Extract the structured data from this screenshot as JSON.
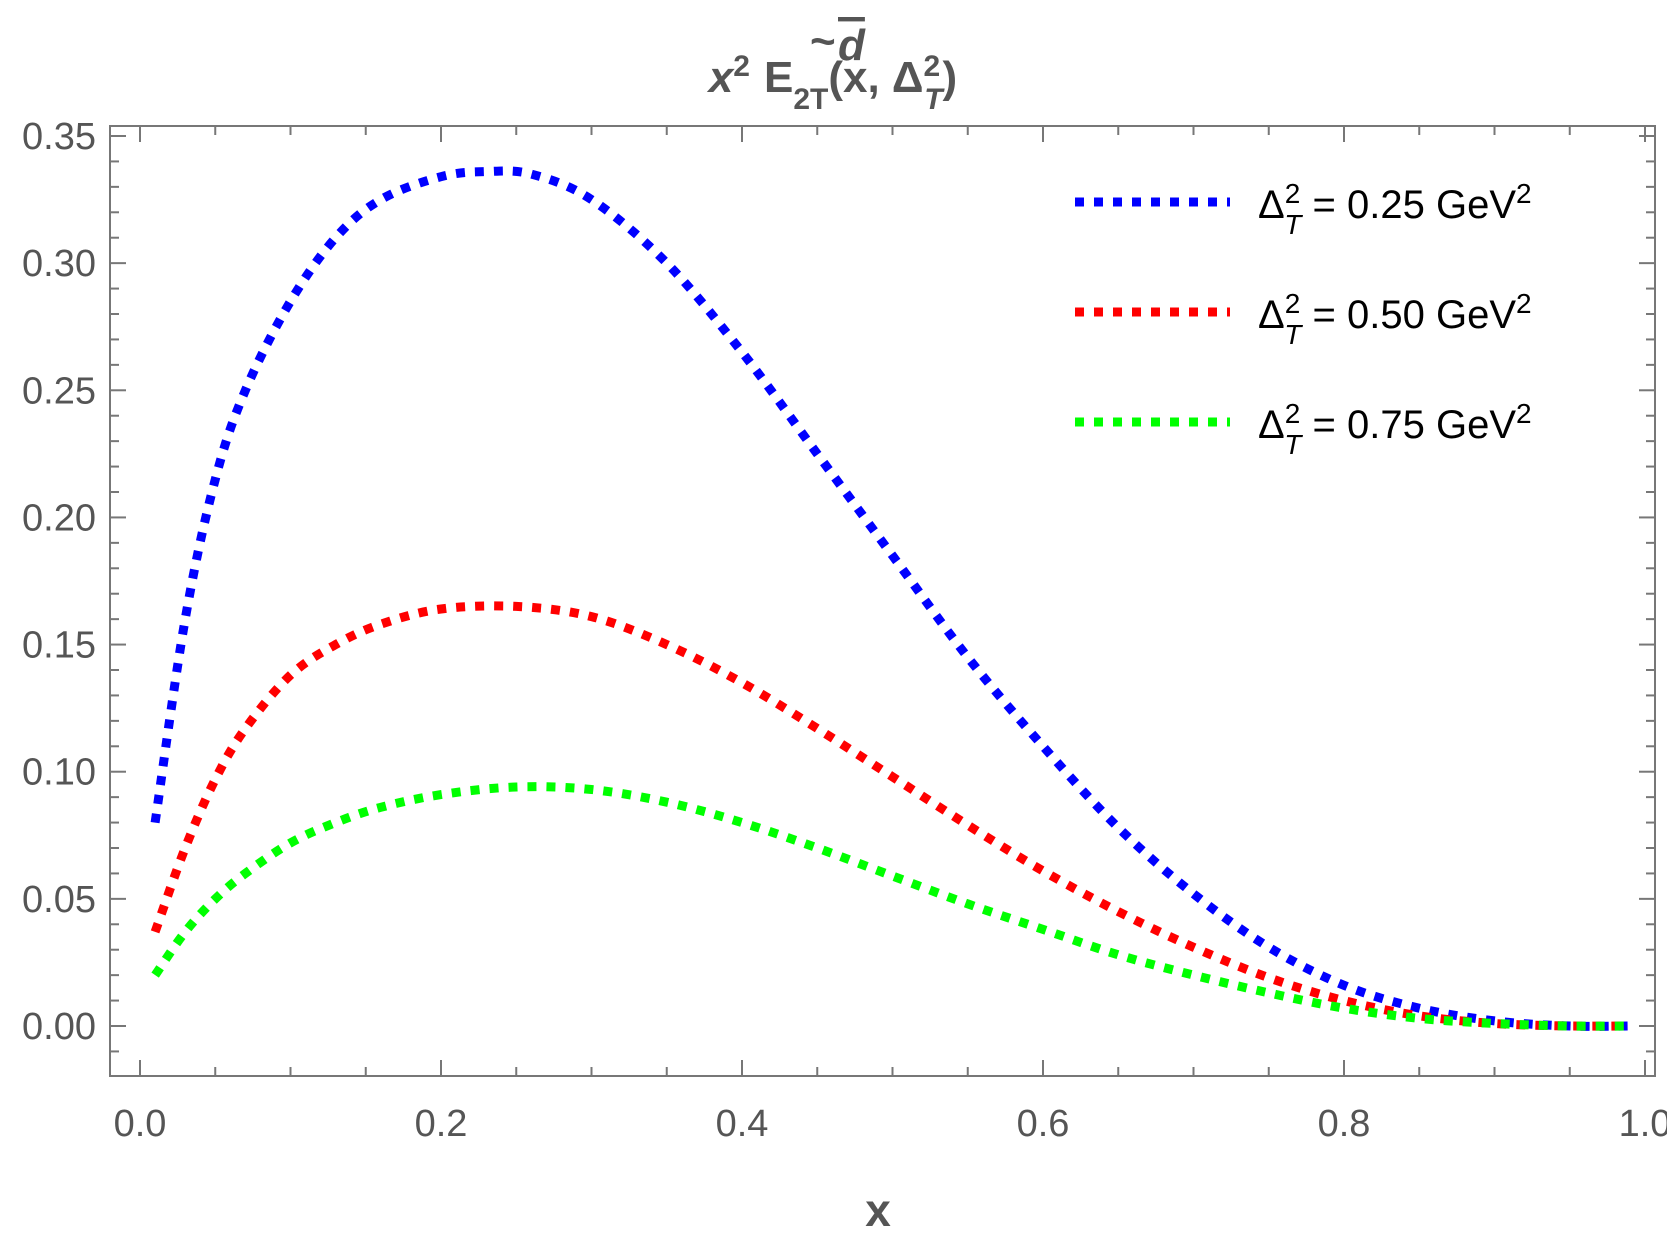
{
  "chart_data": {
    "type": "line",
    "title": {
      "base": "x",
      "base_sup": "2",
      "func": "E",
      "func_mark": "~",
      "func_sup": "d",
      "func_sub": "2T",
      "args_open": "(x, ",
      "delta": "Δ",
      "delta_sup": "2",
      "delta_sub": "T",
      "args_close": ")"
    },
    "xlabel": "x",
    "ylabel": "",
    "xlim": [
      0.0,
      1.0
    ],
    "ylim": [
      -0.02,
      0.355
    ],
    "xticks": [
      "0.0",
      "0.2",
      "0.4",
      "0.6",
      "0.8",
      "1.0"
    ],
    "yticks": [
      "0.00",
      "0.05",
      "0.10",
      "0.15",
      "0.20",
      "0.25",
      "0.30",
      "0.35"
    ],
    "grid": false,
    "legend_position": "top-right",
    "line_style": "dotted",
    "series": [
      {
        "name": "Δ_T^2 = 0.25 GeV^2",
        "label": {
          "delta": "Δ",
          "sup": "2",
          "sub": "T",
          "text": " = 0.25 GeV",
          "unit_sup": "2"
        },
        "color": "#0000ff",
        "x": [
          0.01,
          0.03,
          0.05,
          0.07,
          0.1,
          0.13,
          0.16,
          0.2,
          0.23,
          0.26,
          0.3,
          0.35,
          0.4,
          0.45,
          0.5,
          0.55,
          0.6,
          0.65,
          0.7,
          0.75,
          0.8,
          0.85,
          0.9,
          0.95,
          0.99
        ],
        "y": [
          0.08,
          0.16,
          0.215,
          0.25,
          0.285,
          0.31,
          0.325,
          0.334,
          0.336,
          0.335,
          0.325,
          0.3,
          0.265,
          0.225,
          0.185,
          0.145,
          0.11,
          0.078,
          0.052,
          0.031,
          0.016,
          0.007,
          0.002,
          0.0,
          0.0
        ]
      },
      {
        "name": "Δ_T^2 = 0.50 GeV^2",
        "label": {
          "delta": "Δ",
          "sup": "2",
          "sub": "T",
          "text": " = 0.50 GeV",
          "unit_sup": "2"
        },
        "color": "#ff0000",
        "x": [
          0.01,
          0.03,
          0.05,
          0.07,
          0.1,
          0.13,
          0.16,
          0.2,
          0.25,
          0.3,
          0.35,
          0.4,
          0.45,
          0.5,
          0.55,
          0.6,
          0.65,
          0.7,
          0.75,
          0.8,
          0.85,
          0.9,
          0.95,
          0.99
        ],
        "y": [
          0.037,
          0.07,
          0.097,
          0.117,
          0.138,
          0.15,
          0.158,
          0.164,
          0.165,
          0.161,
          0.15,
          0.135,
          0.117,
          0.098,
          0.079,
          0.061,
          0.045,
          0.031,
          0.019,
          0.01,
          0.004,
          0.001,
          0.0,
          0.0
        ]
      },
      {
        "name": "Δ_T^2 = 0.75 GeV^2",
        "label": {
          "delta": "Δ",
          "sup": "2",
          "sub": "T",
          "text": " = 0.75 GeV",
          "unit_sup": "2"
        },
        "color": "#00ff00",
        "x": [
          0.01,
          0.03,
          0.05,
          0.07,
          0.1,
          0.13,
          0.16,
          0.2,
          0.25,
          0.3,
          0.35,
          0.4,
          0.45,
          0.5,
          0.55,
          0.6,
          0.65,
          0.7,
          0.75,
          0.8,
          0.85,
          0.9,
          0.95,
          0.99
        ],
        "y": [
          0.02,
          0.037,
          0.05,
          0.06,
          0.072,
          0.08,
          0.086,
          0.091,
          0.094,
          0.093,
          0.088,
          0.08,
          0.07,
          0.059,
          0.048,
          0.038,
          0.028,
          0.02,
          0.013,
          0.007,
          0.003,
          0.001,
          0.0,
          0.0
        ]
      }
    ]
  }
}
